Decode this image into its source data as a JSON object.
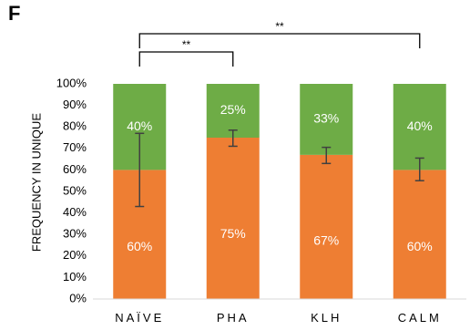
{
  "panel_label": "F",
  "colors": {
    "orange": "#EE7E33",
    "green": "#6EAC46",
    "axis": "#D9D9D9",
    "text": "#000000",
    "errorbar": "#404040",
    "label_text": "#FFFFFF"
  },
  "chart_data": {
    "type": "bar",
    "stacked": true,
    "categories": [
      "NAÏVE",
      "PHA",
      "KLH",
      "CALM"
    ],
    "series": [
      {
        "name": "",
        "color": "#EE7E33",
        "values": [
          60,
          75,
          67,
          60
        ],
        "labels": [
          "60%",
          "75%",
          "67%",
          "60%"
        ]
      },
      {
        "name": "",
        "color": "#6EAC46",
        "values": [
          40,
          25,
          33,
          40
        ],
        "labels": [
          "40%",
          "25%",
          "33%",
          "40%"
        ]
      }
    ],
    "error_bars": [
      {
        "low": 43,
        "high": 77
      },
      {
        "low": 71,
        "high": 78.5
      },
      {
        "low": 63,
        "high": 70.5
      },
      {
        "low": 55,
        "high": 65.5
      }
    ],
    "ylabel": "FREQUENCY IN UNIQUE",
    "xlabel": "",
    "ylim": [
      0,
      100
    ],
    "yticks": [
      "0%",
      "10%",
      "20%",
      "30%",
      "40%",
      "50%",
      "60%",
      "70%",
      "80%",
      "90%",
      "100%"
    ],
    "significance": [
      {
        "from": 0,
        "to": 1,
        "label": "**"
      },
      {
        "from": 0,
        "to": 3,
        "label": "**"
      }
    ],
    "grid": false,
    "legend": "none"
  }
}
